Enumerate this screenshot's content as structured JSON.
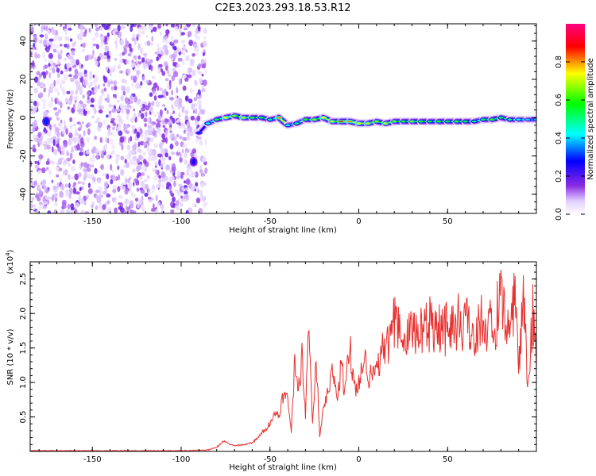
{
  "title": "C2E3.2023.293.18.53.R12",
  "chart_data": [
    {
      "type": "heatmap",
      "xlabel": "Height of straight line (km)",
      "ylabel": "Frequency (Hz)",
      "xlim": [
        -185,
        100
      ],
      "ylim": [
        -50,
        49
      ],
      "x_ticks": [
        -150,
        -100,
        -50,
        0,
        50
      ],
      "y_ticks": [
        -40,
        -20,
        0,
        20,
        40
      ],
      "colorbar": {
        "label": "Normalized spectral amplitude",
        "range": [
          0,
          1
        ],
        "ticks": [
          0.0,
          0.2,
          0.4,
          0.6,
          0.8
        ],
        "colors": [
          "#ffffff",
          "#8a2be2",
          "#0000ff",
          "#00ffff",
          "#00ff00",
          "#ffff00",
          "#ff0000",
          "#ff0080"
        ]
      },
      "noise_region_x": [
        -185,
        -86
      ],
      "signal_trace": {
        "x": [
          -90,
          -85,
          -80,
          -75,
          -70,
          -65,
          -60,
          -55,
          -50,
          -45,
          -40,
          -35,
          -30,
          -25,
          -20,
          -15,
          -10,
          -5,
          0,
          5,
          10,
          15,
          20,
          25,
          30,
          35,
          40,
          45,
          50,
          55,
          60,
          65,
          70,
          75,
          80,
          85,
          90,
          95,
          100
        ],
        "freq": [
          -8,
          -3,
          -1,
          0,
          1,
          0,
          0,
          0,
          -1,
          0,
          -4,
          -3,
          -1,
          -1,
          0,
          -2,
          -2,
          -2,
          -3,
          -3,
          -2,
          -3,
          -2,
          -2,
          -2,
          -2,
          -2,
          -2,
          -2,
          -2,
          -2,
          -2,
          -1,
          -1,
          0,
          -1,
          -1,
          -1,
          -1
        ],
        "amplitude": [
          0.3,
          0.45,
          0.55,
          0.75,
          0.65,
          0.7,
          0.6,
          0.55,
          0.5,
          0.8,
          0.45,
          0.5,
          0.6,
          0.65,
          0.75,
          0.7,
          0.85,
          0.8,
          0.75,
          0.7,
          0.65,
          0.7,
          0.65,
          0.6,
          0.65,
          0.6,
          0.55,
          0.6,
          0.55,
          0.6,
          0.55,
          0.5,
          0.55,
          0.6,
          0.55,
          0.5,
          0.45,
          0.4,
          0.4
        ]
      },
      "isolated_blobs": [
        {
          "x": -176,
          "freq": -2,
          "amplitude": 0.3
        },
        {
          "x": -93,
          "freq": -23,
          "amplitude": 0.25
        }
      ]
    },
    {
      "type": "line",
      "xlabel": "Height of straight line (km)",
      "ylabel": "SNR (10 * v/v)",
      "yscale_label": "(x10",
      "yscale_exp": "4",
      "yscale_close": ")",
      "xlim": [
        -185,
        100
      ],
      "ylim": [
        0,
        2.75
      ],
      "x_ticks": [
        -150,
        -100,
        -50,
        0,
        50
      ],
      "y_ticks": [
        0.5,
        1.0,
        1.5,
        2.0,
        2.5
      ],
      "line_color": "#e8312f",
      "series": [
        {
          "x": [
            -185,
            -150,
            -100,
            -85,
            -80,
            -76,
            -72,
            -70,
            -65,
            -60,
            -55,
            -50,
            -48,
            -45,
            -42,
            -40,
            -38,
            -36,
            -34,
            -32,
            -30,
            -28,
            -26,
            -24,
            -22,
            -20,
            -18,
            -15,
            -12,
            -10,
            -8,
            -5,
            -2,
            0,
            3,
            6,
            10,
            15,
            20,
            25,
            30,
            35,
            40,
            45,
            50,
            55,
            60,
            65,
            70,
            75,
            80,
            85,
            88,
            90,
            93,
            95,
            98,
            100
          ],
          "y": [
            0.01,
            0.01,
            0.01,
            0.02,
            0.06,
            0.15,
            0.1,
            0.08,
            0.1,
            0.12,
            0.25,
            0.4,
            0.55,
            0.5,
            0.85,
            0.75,
            0.3,
            1.3,
            0.9,
            1.4,
            0.5,
            1.85,
            0.4,
            1.4,
            0.2,
            0.6,
            0.8,
            1.15,
            0.75,
            1.3,
            0.9,
            1.5,
            0.9,
            1.0,
            1.4,
            1.05,
            1.3,
            1.5,
            1.85,
            1.6,
            1.8,
            1.7,
            1.9,
            1.85,
            1.8,
            1.9,
            1.85,
            1.75,
            1.9,
            1.8,
            2.1,
            1.6,
            2.5,
            1.2,
            2.2,
            0.9,
            2.0,
            1.2
          ]
        }
      ]
    }
  ]
}
